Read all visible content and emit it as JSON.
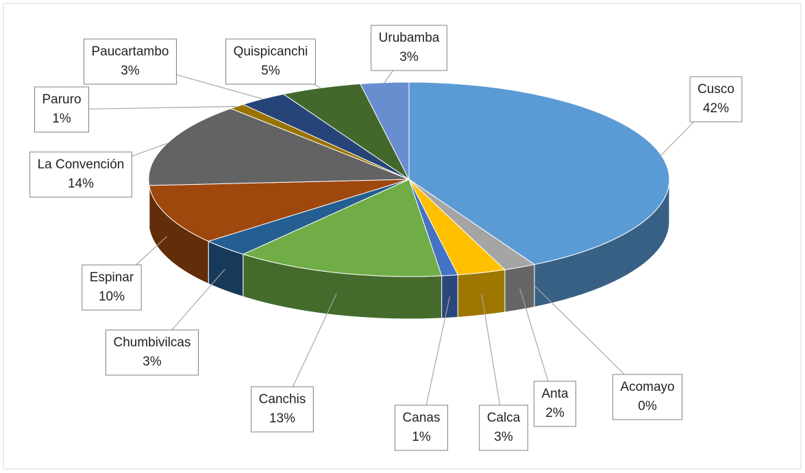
{
  "chart_data": {
    "type": "pie",
    "categories": [
      "Cusco",
      "Acomayo",
      "Anta",
      "Calca",
      "Canas",
      "Canchis",
      "Chumbivilcas",
      "Espinar",
      "La Convención",
      "Paruro",
      "Paucartambo",
      "Quispicanchi",
      "Urubamba"
    ],
    "values": [
      42,
      0,
      2,
      3,
      1,
      13,
      3,
      10,
      14,
      1,
      3,
      5,
      3
    ],
    "value_labels": [
      "42%",
      "0%",
      "2%",
      "3%",
      "1%",
      "13%",
      "3%",
      "10%",
      "14%",
      "1%",
      "3%",
      "5%",
      "3%"
    ],
    "colors": [
      "#5b9bd5",
      "#ed7d31",
      "#a5a5a5",
      "#ffc000",
      "#4472c4",
      "#70ad47",
      "#255e91",
      "#9e480e",
      "#636363",
      "#997300",
      "#264478",
      "#43682b",
      "#698ed0"
    ]
  }
}
